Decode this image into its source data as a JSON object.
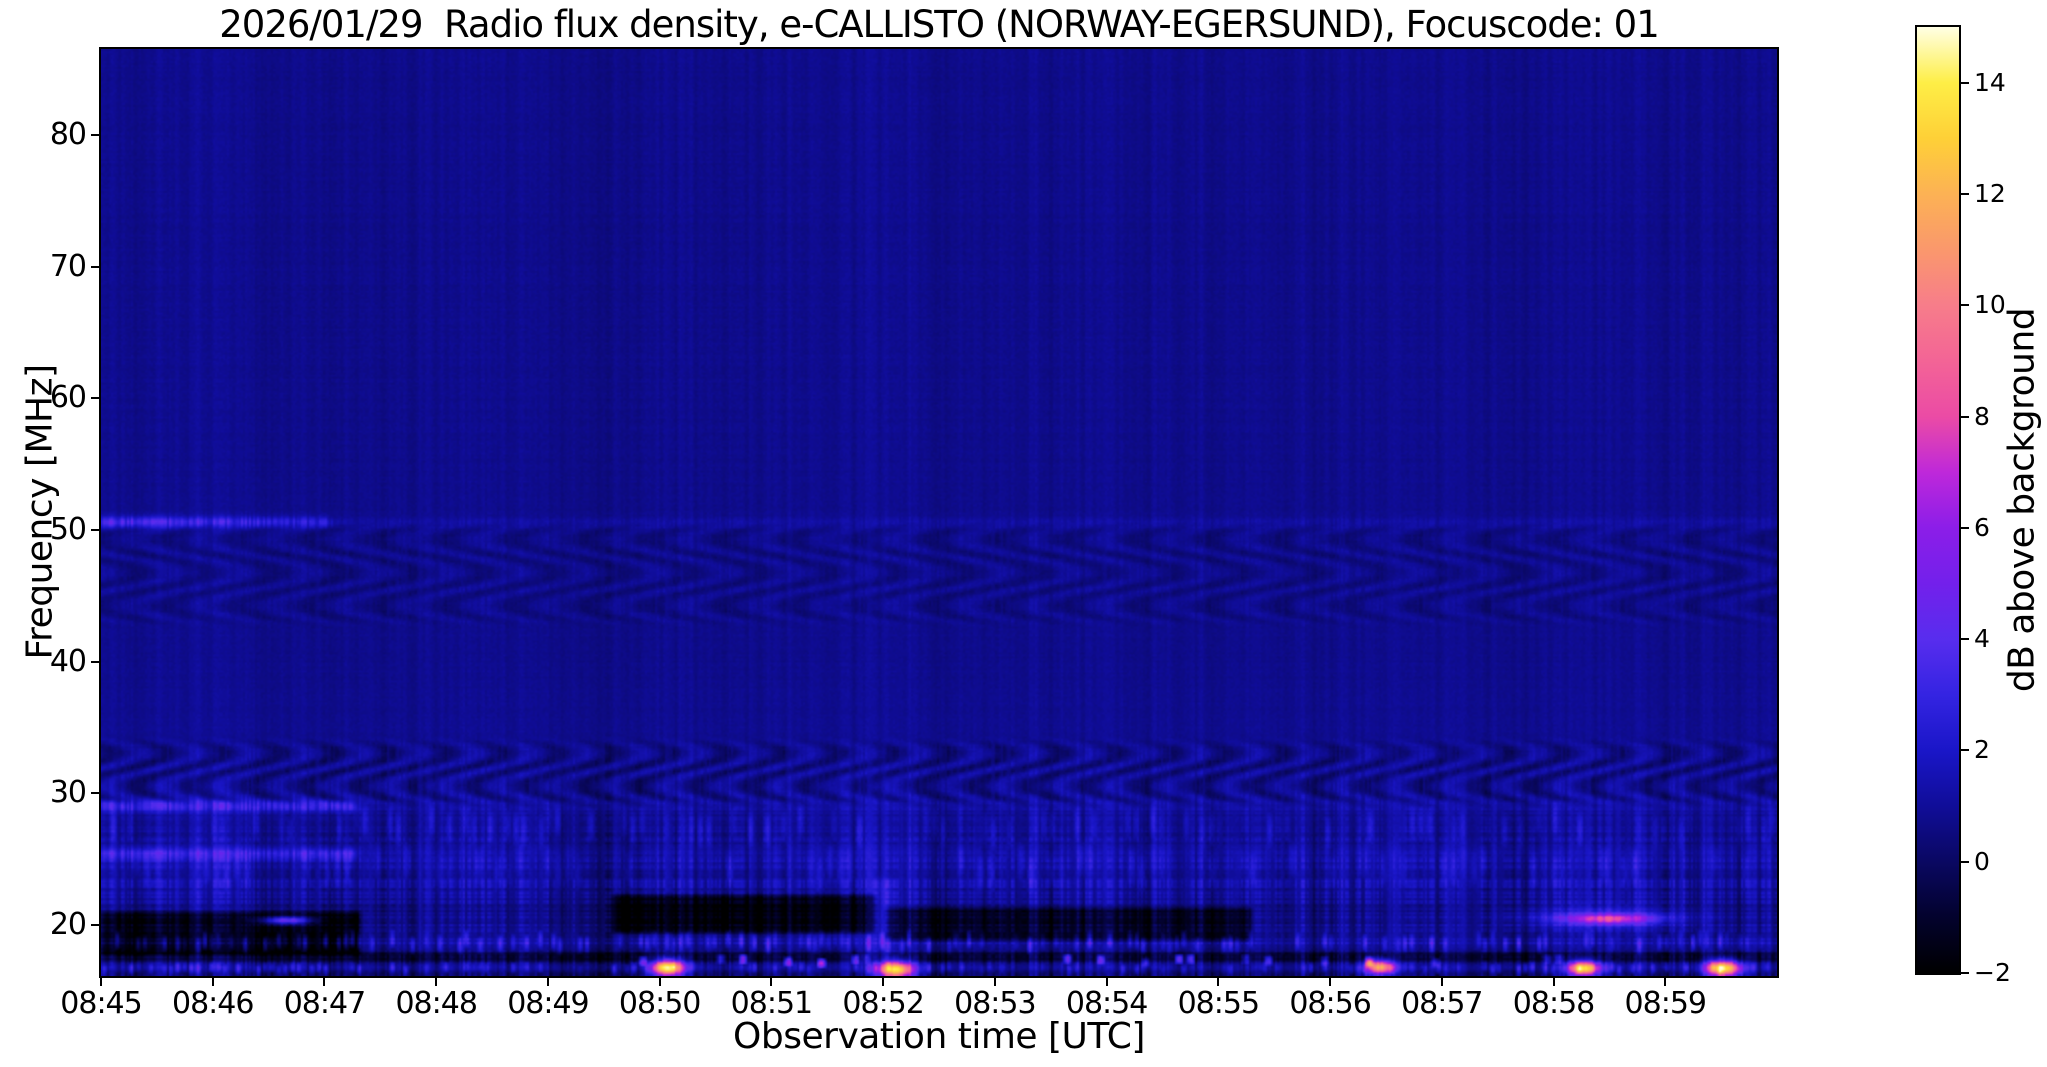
{
  "chart_data": {
    "type": "heatmap",
    "subtype": "radio-spectrogram",
    "title": "2026/01/29  Radio flux density, e-CALLISTO (NORWAY-EGERSUND), Focuscode: 01",
    "xlabel": "Observation time [UTC]",
    "ylabel": "Frequency [MHz]",
    "x_ticks": [
      "08:45",
      "08:46",
      "08:47",
      "08:48",
      "08:49",
      "08:50",
      "08:51",
      "08:52",
      "08:53",
      "08:54",
      "08:55",
      "08:56",
      "08:57",
      "08:58",
      "08:59"
    ],
    "x_range_minutes": [
      0,
      15
    ],
    "y_ticks": [
      20,
      30,
      40,
      50,
      60,
      70,
      80
    ],
    "freq_range_mhz": [
      16.13,
      86.53
    ],
    "grid": false,
    "legend": "none",
    "colorbar": {
      "label": "dB above background",
      "ticks": [
        "−2",
        "0",
        "2",
        "4",
        "6",
        "8",
        "10",
        "12",
        "14"
      ],
      "tick_values": [
        -2,
        0,
        2,
        4,
        6,
        8,
        10,
        12,
        14
      ],
      "value_range": [
        -2,
        15
      ],
      "colormap": "gnuplot2-like (black-blue-violet-magenta-orange-yellow-white)",
      "colormap_stops": [
        [
          0.0,
          [
            0,
            0,
            0
          ]
        ],
        [
          0.059,
          [
            3,
            2,
            45
          ]
        ],
        [
          0.118,
          [
            10,
            8,
            98
          ]
        ],
        [
          0.176,
          [
            16,
            13,
            152
          ]
        ],
        [
          0.235,
          [
            26,
            22,
            200
          ]
        ],
        [
          0.294,
          [
            52,
            36,
            226
          ]
        ],
        [
          0.353,
          [
            88,
            45,
            238
          ]
        ],
        [
          0.412,
          [
            115,
            32,
            235
          ]
        ],
        [
          0.471,
          [
            140,
            30,
            232
          ]
        ],
        [
          0.529,
          [
            190,
            40,
            218
          ]
        ],
        [
          0.588,
          [
            235,
            75,
            165
          ]
        ],
        [
          0.647,
          [
            243,
            100,
            150
          ]
        ],
        [
          0.706,
          [
            247,
            125,
            138
          ]
        ],
        [
          0.765,
          [
            250,
            152,
            108
          ]
        ],
        [
          0.824,
          [
            252,
            178,
            84
          ]
        ],
        [
          0.882,
          [
            254,
            208,
            55
          ]
        ],
        [
          0.941,
          [
            254,
            238,
            70
          ]
        ],
        [
          1.0,
          [
            255,
            255,
            228
          ]
        ]
      ]
    },
    "background_level_db": 0.8,
    "background_profile": [
      [
        16.13,
        1.0
      ],
      [
        17.0,
        1.05
      ],
      [
        17.6,
        0.7
      ],
      [
        18.7,
        1.35
      ],
      [
        19.6,
        1.0
      ],
      [
        21.0,
        0.85
      ],
      [
        22.2,
        1.1
      ],
      [
        23.5,
        1.3
      ],
      [
        25.8,
        1.3
      ],
      [
        26.6,
        1.05
      ],
      [
        29.0,
        1.0
      ],
      [
        33.0,
        0.9
      ],
      [
        40.0,
        0.8
      ],
      [
        86.53,
        0.78
      ]
    ],
    "features": {
      "rfi_lines": [
        {
          "f_mhz": 50.6,
          "t_min": [
            0,
            2.05
          ],
          "amp_db": 2.6,
          "width_mhz": 0.3,
          "fade": true
        },
        {
          "f_mhz": 50.55,
          "t_min": [
            0,
            15
          ],
          "amp_db": 0.45,
          "width_mhz": 0.28
        },
        {
          "f_mhz": 29.05,
          "t_min": [
            0,
            2.3
          ],
          "amp_db": 2.0,
          "width_mhz": 0.32
        },
        {
          "f_mhz": 29.0,
          "t_min": [
            0,
            15
          ],
          "amp_db": 0.35,
          "width_mhz": 0.3
        },
        {
          "f_mhz": 25.4,
          "t_min": [
            0,
            2.3
          ],
          "amp_db": 1.8,
          "width_mhz": 0.32
        },
        {
          "f_mhz": 25.4,
          "t_min": [
            0,
            15
          ],
          "amp_db": 0.3,
          "width_mhz": 0.3
        }
      ],
      "interference_waves": [
        {
          "f_band_mhz": [
            43.0,
            50.2
          ],
          "period_min": 0.62,
          "amp_db": 0.4,
          "phase": 0.0
        },
        {
          "f_band_mhz": [
            29.3,
            33.8
          ],
          "period_min": 0.5,
          "amp_db": 0.7,
          "phase": 2.1
        }
      ],
      "speckle_rows": [
        {
          "f_band_mhz": [
            26.2,
            28.8
          ],
          "amp_db": 1.0,
          "density": 0.45,
          "cell_min": 0.075
        },
        {
          "f_band_mhz": [
            23.0,
            25.8
          ],
          "amp_db": 0.85,
          "density": 0.4,
          "cell_min": 0.09
        },
        {
          "f_band_mhz": [
            18.0,
            19.4
          ],
          "amp_db": 1.9,
          "density": 0.5,
          "cell_min": 0.06
        },
        {
          "f_band_mhz": [
            16.25,
            17.15
          ],
          "amp_db": 1.7,
          "density": 0.45,
          "cell_min": 0.06
        },
        {
          "f_band_mhz": [
            16.9,
            17.7
          ],
          "amp_db": 4.8,
          "density": 0.16,
          "cell_min": 0.1,
          "t_min": [
            4.8,
            14.3
          ]
        }
      ],
      "dark_patches": [
        {
          "t_min": [
            0,
            2.32
          ],
          "f_band_mhz": [
            17.8,
            21.0
          ],
          "amp_db": -2.4
        },
        {
          "t_min": [
            4.58,
            6.93
          ],
          "f_band_mhz": [
            19.4,
            22.3
          ],
          "amp_db": -2.5
        },
        {
          "t_min": [
            7.02,
            10.3
          ],
          "f_band_mhz": [
            18.8,
            21.3
          ],
          "amp_db": -1.9
        },
        {
          "t_min": [
            0,
            15
          ],
          "f_band_mhz": [
            17.15,
            17.95
          ],
          "amp_db": -1.6
        },
        {
          "t_min": [
            0,
            15
          ],
          "f_band_mhz": [
            16.1,
            16.4
          ],
          "amp_db": -1.3
        }
      ],
      "bursts": [
        {
          "t_min": 5.08,
          "f_mhz": 16.75,
          "amp_db": 13.5,
          "sigma_t_min": 0.1,
          "sigma_f_mhz": 0.45
        },
        {
          "t_min": 7.12,
          "f_mhz": 16.6,
          "amp_db": 12.5,
          "sigma_t_min": 0.11,
          "sigma_f_mhz": 0.45
        },
        {
          "t_min": 11.45,
          "f_mhz": 16.8,
          "amp_db": 11.0,
          "sigma_t_min": 0.09,
          "sigma_f_mhz": 0.4
        },
        {
          "t_min": 13.27,
          "f_mhz": 16.7,
          "amp_db": 12.5,
          "sigma_t_min": 0.1,
          "sigma_f_mhz": 0.4
        },
        {
          "t_min": 14.52,
          "f_mhz": 16.7,
          "amp_db": 13.5,
          "sigma_t_min": 0.11,
          "sigma_f_mhz": 0.45
        },
        {
          "t_min": 1.66,
          "f_mhz": 20.35,
          "amp_db": 6.5,
          "sigma_t_min": 0.16,
          "sigma_f_mhz": 0.22
        },
        {
          "t_min": 13.5,
          "f_mhz": 20.45,
          "amp_db": 5.5,
          "sigma_t_min": 0.28,
          "sigma_f_mhz": 0.28
        },
        {
          "t_min": 13.45,
          "f_mhz": 20.6,
          "amp_db": 2.0,
          "sigma_t_min": 0.55,
          "sigma_f_mhz": 0.6
        }
      ],
      "bright_columns": [
        {
          "t_min": 7.0,
          "f_band_mhz": [
            16.1,
            23.5
          ],
          "amp_db": 1.1,
          "sigma_t_min": 0.07
        }
      ]
    }
  }
}
